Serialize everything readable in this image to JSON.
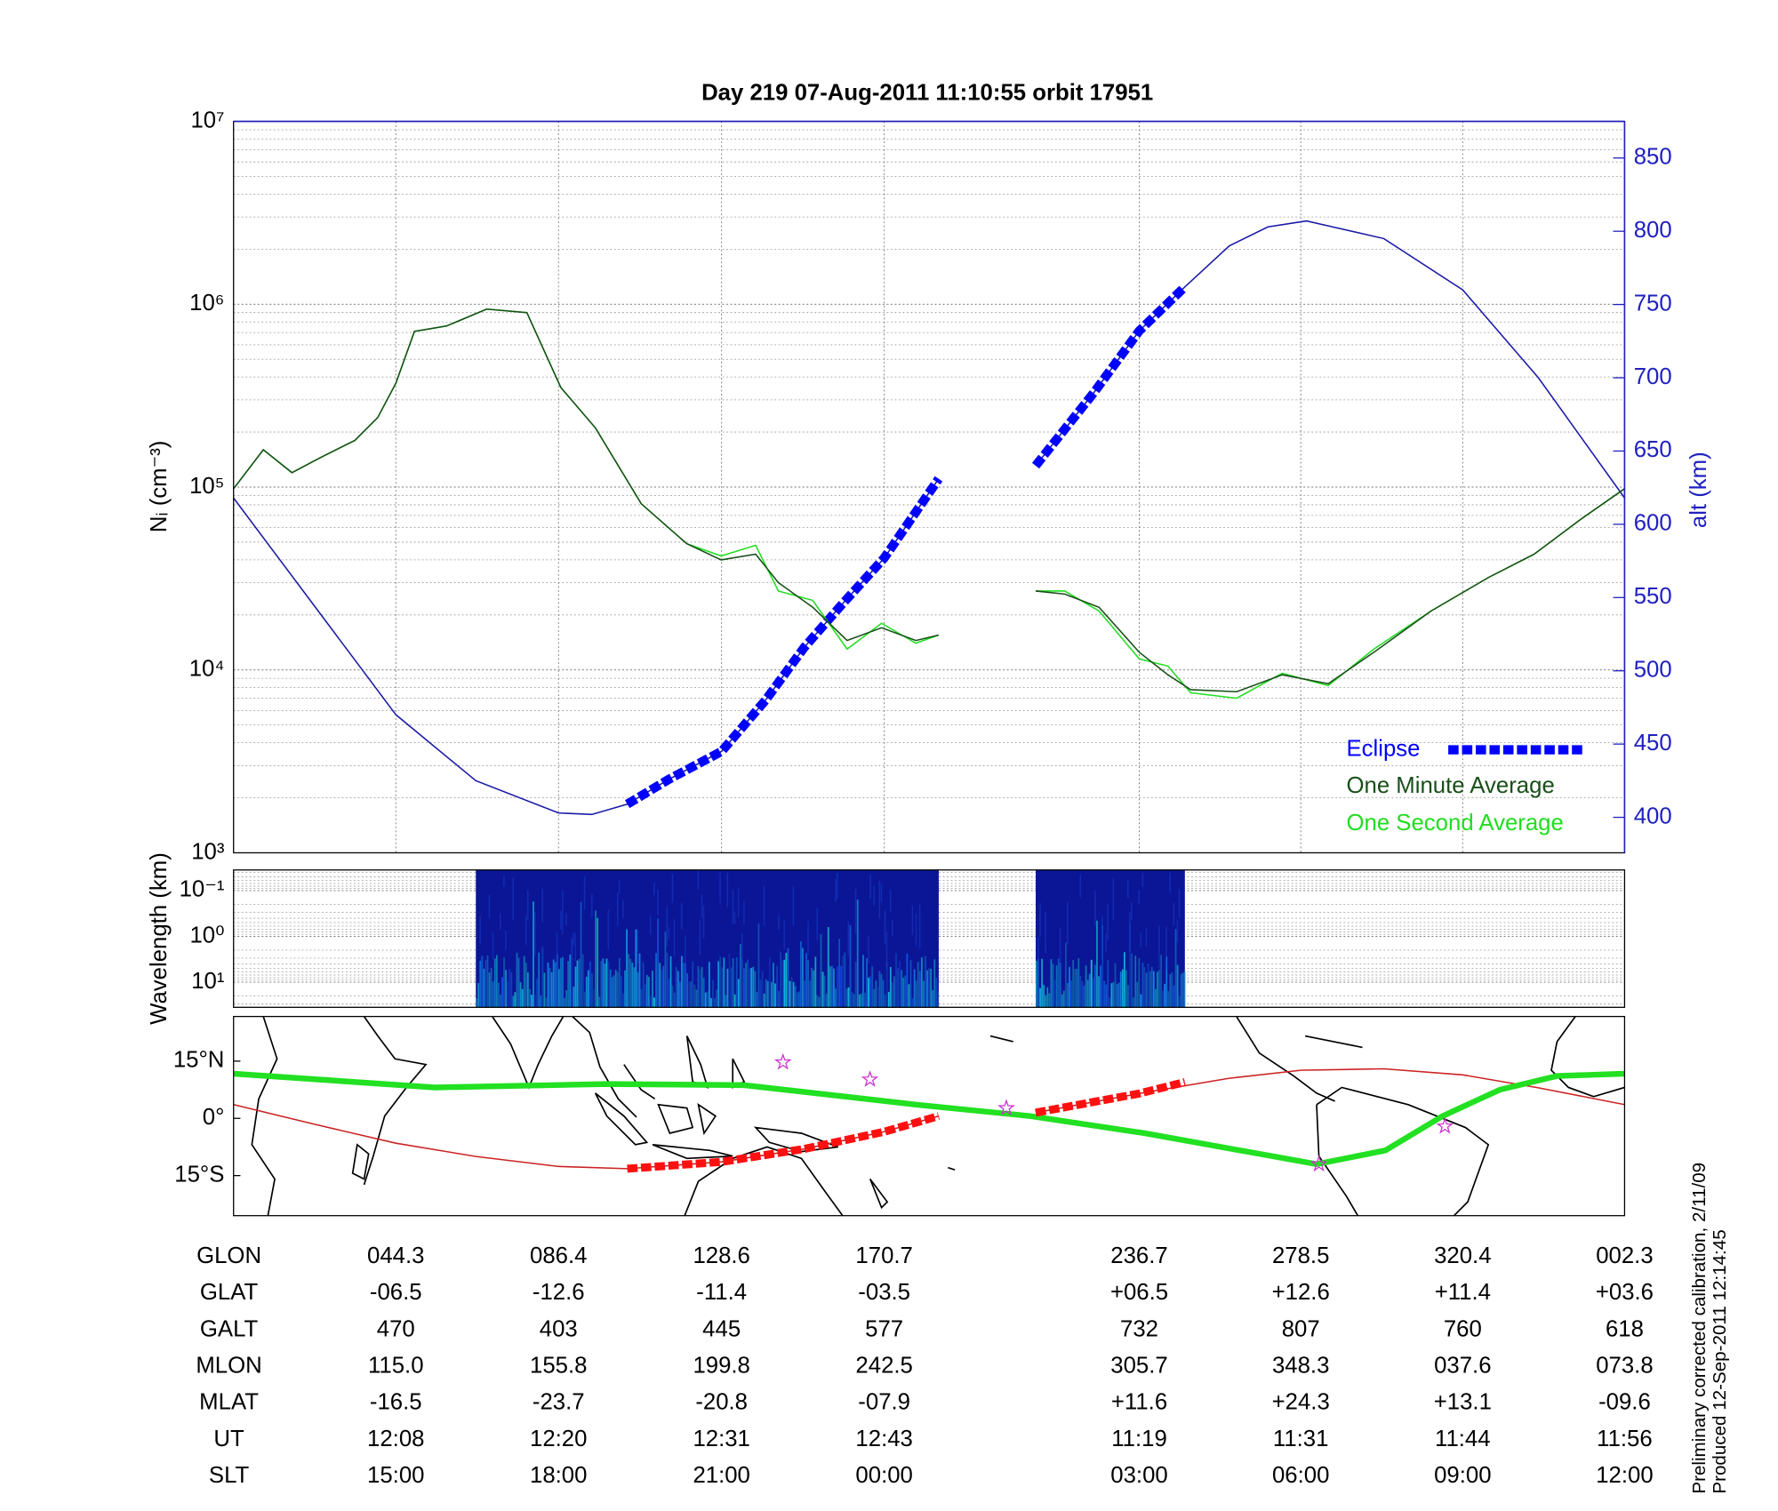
{
  "chart_data": [
    {
      "type": "line",
      "title": "Day 219  07-Aug-2011 11:10:55   orbit 17951",
      "ylabel": "Nᵢ (cm⁻³)",
      "y2label": "alt (km)",
      "xlim": [
        2.3,
        362.3
      ],
      "xticks": [
        44.3,
        86.4,
        128.6,
        170.7,
        236.7,
        278.5,
        320.4
      ],
      "ylim": [
        1000,
        10000000
      ],
      "log_y": true,
      "yticks": [
        {
          "value": 1000,
          "label": "10³"
        },
        {
          "value": 10000,
          "label": "10⁴"
        },
        {
          "value": 100000,
          "label": "10⁵"
        },
        {
          "value": 1000000,
          "label": "10⁶"
        },
        {
          "value": 10000000,
          "label": "10⁷"
        }
      ],
      "y2lim": [
        375.8,
        875
      ],
      "y2ticks": [
        400,
        450,
        500,
        550,
        600,
        650,
        700,
        750,
        800,
        850
      ],
      "y2color": "#2020c0",
      "grid": true,
      "legend": "lower right",
      "series": [
        {
          "axis": "y2",
          "color": "#1a1aa8",
          "style": "thin",
          "x": [
            2.3,
            23,
            44.3,
            65,
            86.4,
            95,
            104.2,
            115,
            128.6,
            140,
            150,
            160,
            170.7,
            184.8,
            197,
            209.9,
            225,
            236.7,
            248.5,
            260,
            270,
            280,
            300,
            320.4,
            340,
            362.3
          ],
          "values": [
            618,
            545,
            470,
            425,
            403,
            402,
            409,
            426,
            445,
            480,
            516,
            546,
            577,
            631,
            null,
            640,
            690,
            732,
            762,
            790,
            803,
            807,
            795,
            760,
            700,
            618
          ]
        },
        {
          "name": "Eclipse",
          "axis": "y2",
          "color": "#0000ff",
          "style": "dashed",
          "x": [
            104.2,
            115,
            128.6,
            140,
            150,
            160,
            170.7,
            184.8,
            197,
            209.9,
            225,
            236.7,
            248.5
          ],
          "values": [
            409,
            426,
            445,
            480,
            516,
            546,
            577,
            631,
            null,
            640,
            690,
            732,
            762
          ]
        },
        {
          "name": "One Second Average",
          "color": "#22dd22",
          "style": "thin",
          "x": [
            2.3,
            10,
            17.4,
            24.8,
            33.7,
            39.6,
            44.3,
            49.1,
            57.4,
            67.8,
            78.2,
            87,
            96,
            107.8,
            119.6,
            128.5,
            137.4,
            143.3,
            152.2,
            161.1,
            170,
            178.9,
            184.8,
            197,
            209.9,
            217.4,
            226.3,
            236.7,
            244.1,
            250,
            261.9,
            273.7,
            285.6,
            297.4,
            312.2,
            327,
            338.9,
            350.7,
            362.3
          ],
          "values": [
            98000,
            160000,
            120000,
            145000,
            180000,
            240000,
            370000,
            710000,
            760000,
            940000,
            900000,
            350000,
            210000,
            81000,
            49000,
            42000,
            48000,
            27000,
            24000,
            13000,
            18000,
            14000,
            15500,
            null,
            27000,
            27000,
            21000,
            11500,
            10500,
            7500,
            7000,
            9600,
            8200,
            13000,
            21000,
            32000,
            43000,
            66000,
            98000
          ]
        },
        {
          "name": "One Minute Average",
          "color": "#184f18",
          "style": "thin",
          "x": [
            2.3,
            10,
            17.4,
            24.8,
            33.7,
            39.6,
            44.3,
            49.1,
            57.4,
            67.8,
            78.2,
            87,
            96,
            107.8,
            119.6,
            128.5,
            137.4,
            143.3,
            152.2,
            161.1,
            170,
            178.9,
            184.8,
            197,
            209.9,
            217.4,
            226.3,
            236.7,
            244.1,
            250,
            261.9,
            273.7,
            285.6,
            297.4,
            312.2,
            327,
            338.9,
            350.7,
            362.3
          ],
          "values": [
            98000,
            160000,
            120000,
            145000,
            180000,
            240000,
            370000,
            710000,
            760000,
            940000,
            900000,
            350000,
            210000,
            81000,
            49000,
            40000,
            43000,
            30000,
            22000,
            14500,
            17000,
            14500,
            15500,
            null,
            27000,
            26000,
            22000,
            12500,
            9400,
            7800,
            7600,
            9400,
            8400,
            12500,
            21000,
            32000,
            43000,
            66000,
            98000
          ]
        }
      ]
    },
    {
      "type": "spectrogram",
      "ylabel": "Wavelength (km)",
      "xlim": [
        2.3,
        362.3
      ],
      "ylim": [
        0.0355,
        35.5
      ],
      "log_y": true,
      "inverted": true,
      "yticks": [
        {
          "value": 0.1,
          "label": "10⁻¹"
        },
        {
          "value": 1,
          "label": "10⁰"
        },
        {
          "value": 10,
          "label": "10¹"
        }
      ],
      "color": "#0a1696",
      "segments": [
        [
          65,
          184.8
        ],
        [
          209.9,
          248.5
        ]
      ]
    },
    {
      "type": "map",
      "xlim": [
        2.3,
        362.3
      ],
      "ylim": [
        -25.5,
        26.7
      ],
      "yticks": [
        {
          "value": 15,
          "label": "15°N"
        },
        {
          "value": 0,
          "label": "0°"
        },
        {
          "value": -15,
          "label": "15°S"
        }
      ],
      "series": [
        {
          "color": "#cc2222",
          "style": "thin",
          "x": [
            2.3,
            23,
            44.3,
            65,
            86.4,
            104.2,
            128.6,
            150,
            170.7,
            184.8,
            197,
            209.9,
            236.7,
            260,
            278.5,
            300,
            320.4,
            340,
            362.3
          ],
          "values": [
            3.6,
            -1.5,
            -6.5,
            -10,
            -12.6,
            -13.2,
            -11.4,
            -8,
            -3.5,
            0.6,
            null,
            1.5,
            6.5,
            10.5,
            12.6,
            13,
            11.4,
            8,
            3.6
          ]
        },
        {
          "color": "#ff1010",
          "style": "dashed",
          "x": [
            104.2,
            128.6,
            150,
            170.7,
            184.8,
            197,
            209.9,
            236.7,
            248.5
          ],
          "values": [
            -13.2,
            -11.4,
            -8,
            -3.5,
            0.6,
            null,
            1.5,
            6.5,
            9.5
          ]
        },
        {
          "color": "#22e022",
          "style": "thick",
          "x": [
            2.3,
            54.4,
            98.9,
            134.4,
            178.9,
            208.5,
            238.1,
            282.6,
            300.4,
            315.2,
            330,
            344.8,
            362.3
          ],
          "values": [
            11.7,
            8.1,
            9,
            8.7,
            3.6,
            0.6,
            -3.9,
            -12,
            -8.4,
            0.6,
            7.5,
            11.1,
            11.7
          ]
        }
      ],
      "stars": {
        "color": "#cc33cc",
        "x": [
          144.5,
          167,
          202.3,
          283.2,
          315.8
        ],
        "y": [
          14.7,
          10.2,
          2.7,
          -12,
          -2.1
        ]
      }
    }
  ],
  "table": {
    "rows": [
      {
        "label": "GLON",
        "values": [
          "044.3",
          "086.4",
          "128.6",
          "170.7",
          "236.7",
          "278.5",
          "320.4",
          "002.3"
        ]
      },
      {
        "label": "GLAT",
        "values": [
          "-06.5",
          "-12.6",
          "-11.4",
          "-03.5",
          "+06.5",
          "+12.6",
          "+11.4",
          "+03.6"
        ]
      },
      {
        "label": "GALT",
        "values": [
          "470",
          "403",
          "445",
          "577",
          "732",
          "807",
          "760",
          "618"
        ]
      },
      {
        "label": "MLON",
        "values": [
          "115.0",
          "155.8",
          "199.8",
          "242.5",
          "305.7",
          "348.3",
          "037.6",
          "073.8"
        ]
      },
      {
        "label": "MLAT",
        "values": [
          "-16.5",
          "-23.7",
          "-20.8",
          "-07.9",
          "+11.6",
          "+24.3",
          "+13.1",
          "-09.6"
        ]
      },
      {
        "label": "UT",
        "values": [
          "12:08",
          "12:20",
          "12:31",
          "12:43",
          "11:19",
          "11:31",
          "11:44",
          "11:56"
        ]
      },
      {
        "label": "SLT",
        "values": [
          "15:00",
          "18:00",
          "21:00",
          "00:00",
          "03:00",
          "06:00",
          "09:00",
          "12:00"
        ]
      }
    ]
  },
  "footer": [
    "Preliminary corrected calibration, 2/11/09",
    "Produced 12-Sep-2011 12:14:45"
  ]
}
